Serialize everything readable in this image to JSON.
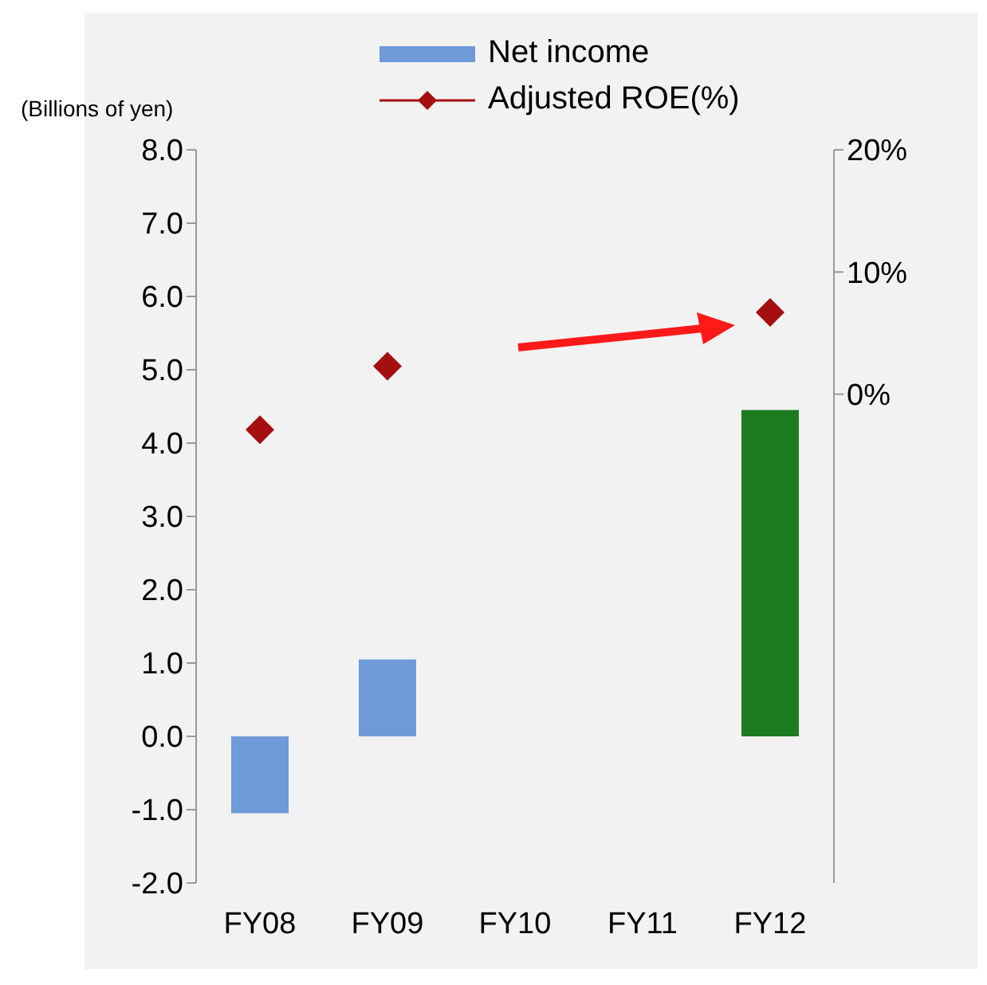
{
  "chart_data": {
    "type": "bar",
    "ylabel": "(Billions of yen)",
    "categories": [
      "FY08",
      "FY09",
      "FY10",
      "FY11",
      "FY12"
    ],
    "series": [
      {
        "name": "Net income",
        "color": "#6f9bd8",
        "colors": [
          "#6f9bd8",
          "#6f9bd8",
          "#6f9bd8",
          "#6f9bd8",
          "#1e7b1e"
        ],
        "values": [
          -1.05,
          1.05,
          null,
          null,
          4.45
        ]
      },
      {
        "name": "Adjusted ROE(%)",
        "type": "scatter",
        "color": "#a50f0f",
        "axis": "y2",
        "marker": "diamond",
        "values": [
          -2.9,
          2.3,
          null,
          null,
          6.7
        ]
      }
    ],
    "ylim": [
      -2,
      8
    ],
    "yticks": [
      {
        "value": -2,
        "label": "-2.0"
      },
      {
        "value": -1,
        "label": "-1.0"
      },
      {
        "value": 0,
        "label": "0.0"
      },
      {
        "value": 1,
        "label": "1.0"
      },
      {
        "value": 2,
        "label": "2.0"
      },
      {
        "value": 3,
        "label": "3.0"
      },
      {
        "value": 4,
        "label": "4.0"
      },
      {
        "value": 5,
        "label": "5.0"
      },
      {
        "value": 6,
        "label": "6.0"
      },
      {
        "value": 7,
        "label": "7.0"
      },
      {
        "value": 8,
        "label": "8.0"
      }
    ],
    "y2lim": [
      -40,
      20
    ],
    "y2ticks": [
      {
        "value": 0,
        "label": "0%"
      },
      {
        "value": 10,
        "label": "10%"
      },
      {
        "value": 20,
        "label": "20%"
      }
    ],
    "grid": false,
    "legend": "top"
  }
}
